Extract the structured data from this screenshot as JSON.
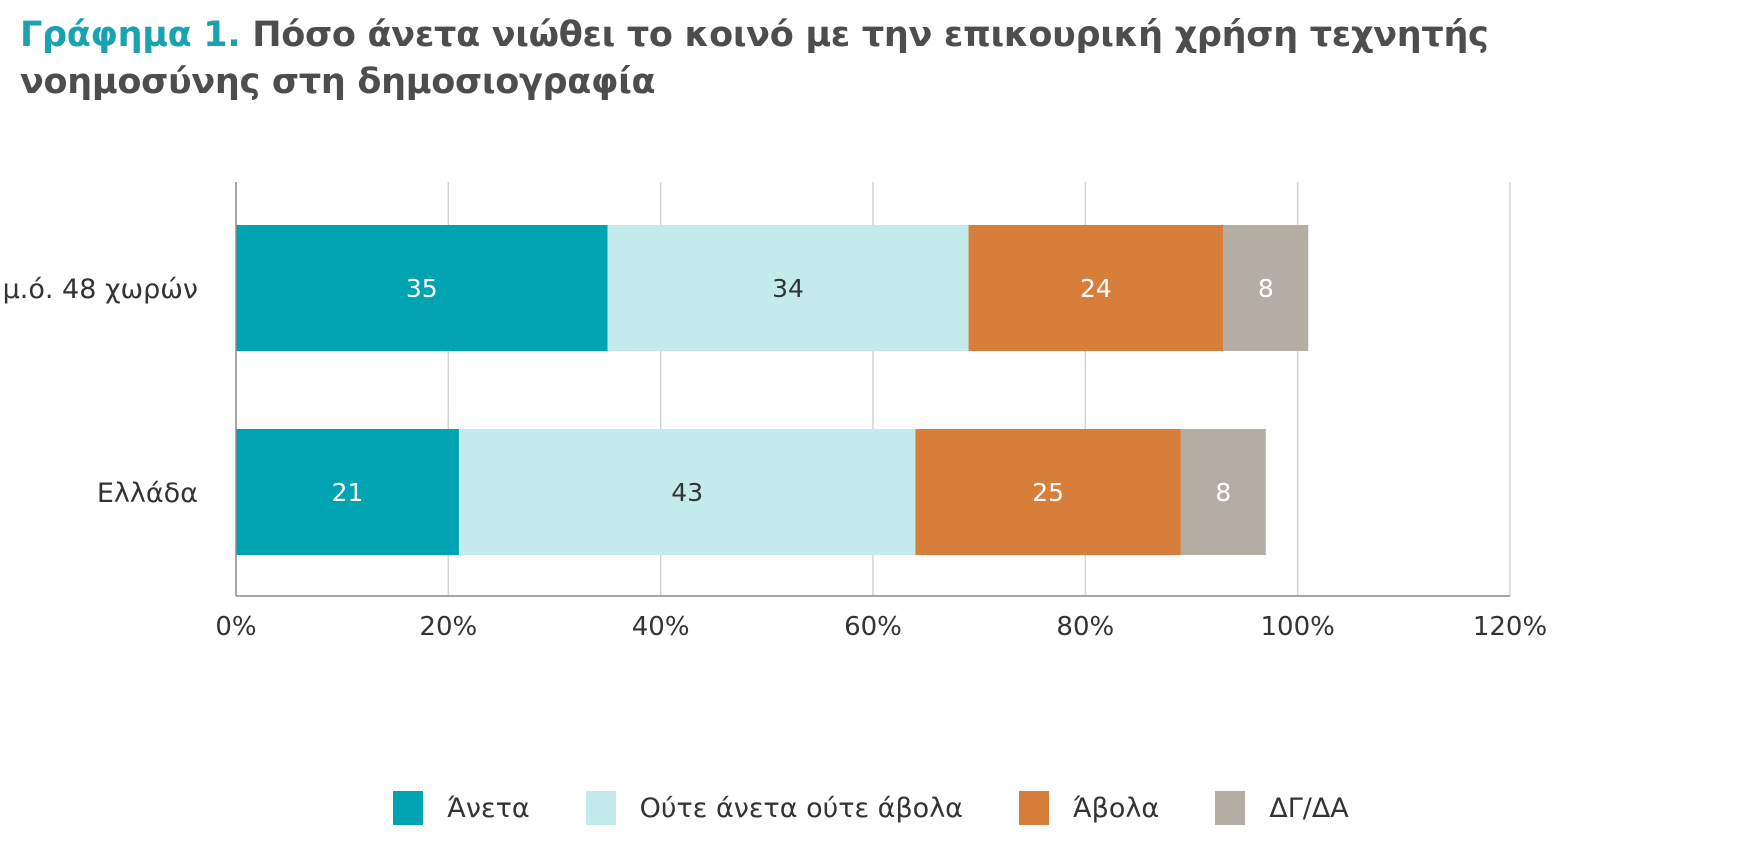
{
  "title": {
    "lead": "Γράφημα 1.",
    "text": "Πόσο άνετα νιώθει το κοινό με την επικουρική χρήση τεχνητής νοημοσύνης στη δημοσιογραφία"
  },
  "chart_data": {
    "type": "bar",
    "orientation": "horizontal",
    "stacked": true,
    "categories": [
      "μ.ό. 48 χωρών",
      "Ελλάδα"
    ],
    "series": [
      {
        "name": "Άνετα",
        "values": [
          35,
          21
        ],
        "color": "#00a3b1",
        "label_color": "#ffffff"
      },
      {
        "name": "Ούτε άνετα ούτε άβολα",
        "values": [
          34,
          43
        ],
        "color": "#c3ebeb",
        "label_color": "#333333"
      },
      {
        "name": "Άβολα",
        "values": [
          24,
          25
        ],
        "color": "#d77e3a",
        "label_color": "#ffffff"
      },
      {
        "name": "ΔΓ/ΔΑ",
        "values": [
          8,
          8
        ],
        "color": "#b3ada3",
        "label_color": "#ffffff"
      }
    ],
    "xlim": [
      0,
      120
    ],
    "xticks": [
      0,
      20,
      40,
      60,
      80,
      100,
      120
    ],
    "xtick_labels": [
      "0%",
      "20%",
      "40%",
      "60%",
      "80%",
      "100%",
      "120%"
    ],
    "grid": true,
    "legend_position": "bottom"
  }
}
